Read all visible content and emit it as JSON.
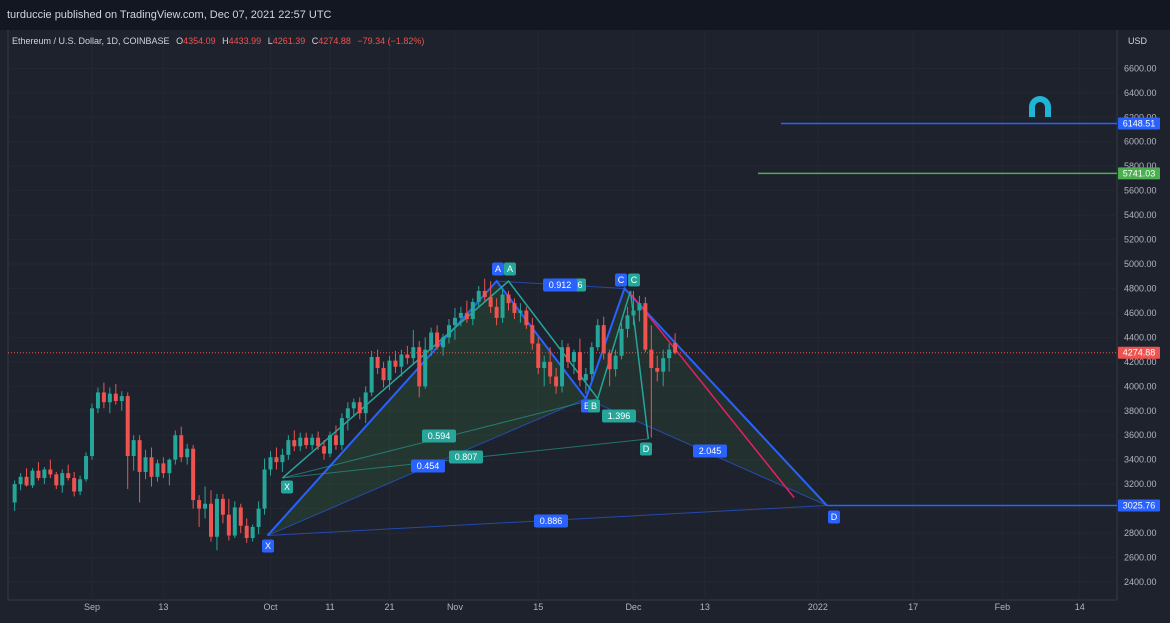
{
  "header": {
    "publisher": "turduccie published on TradingView.com, Dec 07, 2021 22:57 UTC"
  },
  "legend": {
    "symbol": "Ethereum / U.S. Dollar, 1D, COINBASE",
    "open_key": "O",
    "open": "4354.09",
    "high_key": "H",
    "high": "4433.99",
    "low_key": "L",
    "low": "4261.39",
    "close_key": "C",
    "close": "4274.88",
    "change": "−79.34 (−1.82%)"
  },
  "currency": "USD",
  "colors": {
    "up": "#26a69a",
    "down": "#ef5350",
    "pattern_blue": "#2962ff",
    "pattern_teal": "#26a69a",
    "target_green": "#4caf50"
  },
  "chart_data": {
    "type": "candlestick",
    "ylim": [
      2250,
      6850
    ],
    "y_ticks": [
      "2400.00",
      "2600.00",
      "2800.00",
      "3000.00",
      "3200.00",
      "3400.00",
      "3600.00",
      "3800.00",
      "4000.00",
      "4200.00",
      "4400.00",
      "4600.00",
      "4800.00",
      "5000.00",
      "5200.00",
      "5400.00",
      "5600.00",
      "5800.00",
      "6000.00",
      "6200.00",
      "6400.00",
      "6600.00"
    ],
    "x_ticks": [
      {
        "label": "Sep",
        "day": 0
      },
      {
        "label": "13",
        "day": 12
      },
      {
        "label": "Oct",
        "day": 30
      },
      {
        "label": "11",
        "day": 40
      },
      {
        "label": "21",
        "day": 50
      },
      {
        "label": "Nov",
        "day": 61
      },
      {
        "label": "15",
        "day": 75
      },
      {
        "label": "Dec",
        "day": 91
      },
      {
        "label": "13",
        "day": 103
      },
      {
        "label": "2022",
        "day": 122
      },
      {
        "label": "17",
        "day": 138
      },
      {
        "label": "Feb",
        "day": 153
      },
      {
        "label": "14",
        "day": 166
      }
    ],
    "price_labels": [
      {
        "value": 6148.51,
        "text": "6148.51",
        "color": "#2962ff"
      },
      {
        "value": 5741.03,
        "text": "5741.03",
        "color": "#4caf50"
      },
      {
        "value": 4274.88,
        "text": "4274.88",
        "color": "#ef5350"
      },
      {
        "value": 3025.76,
        "text": "3025.76",
        "color": "#2962ff"
      }
    ],
    "candles": [
      [
        -13,
        3050,
        3230,
        2980,
        3200
      ],
      [
        -12,
        3200,
        3290,
        3150,
        3260
      ],
      [
        -11,
        3260,
        3330,
        3180,
        3190
      ],
      [
        -10,
        3190,
        3330,
        3170,
        3310
      ],
      [
        -9,
        3310,
        3380,
        3230,
        3250
      ],
      [
        -8,
        3250,
        3340,
        3200,
        3320
      ],
      [
        -7,
        3320,
        3400,
        3250,
        3280
      ],
      [
        -6,
        3280,
        3300,
        3160,
        3190
      ],
      [
        -5,
        3190,
        3320,
        3130,
        3290
      ],
      [
        -4,
        3290,
        3360,
        3230,
        3250
      ],
      [
        -3,
        3250,
        3300,
        3100,
        3140
      ],
      [
        -2,
        3140,
        3270,
        3110,
        3240
      ],
      [
        -1,
        3240,
        3460,
        3220,
        3430
      ],
      [
        0,
        3430,
        3860,
        3400,
        3820
      ],
      [
        1,
        3820,
        3990,
        3780,
        3950
      ],
      [
        2,
        3950,
        4030,
        3820,
        3870
      ],
      [
        3,
        3870,
        3990,
        3780,
        3940
      ],
      [
        4,
        3940,
        4020,
        3850,
        3880
      ],
      [
        5,
        3880,
        3960,
        3800,
        3920
      ],
      [
        6,
        3920,
        3950,
        3160,
        3430
      ],
      [
        7,
        3430,
        3600,
        3310,
        3560
      ],
      [
        8,
        3560,
        3600,
        3050,
        3300
      ],
      [
        9,
        3300,
        3480,
        3240,
        3420
      ],
      [
        10,
        3420,
        3500,
        3180,
        3260
      ],
      [
        11,
        3260,
        3400,
        3220,
        3370
      ],
      [
        12,
        3370,
        3420,
        3250,
        3290
      ],
      [
        13,
        3290,
        3410,
        3190,
        3400
      ],
      [
        14,
        3400,
        3640,
        3360,
        3600
      ],
      [
        15,
        3600,
        3670,
        3380,
        3420
      ],
      [
        16,
        3420,
        3530,
        3360,
        3490
      ],
      [
        17,
        3490,
        3520,
        3000,
        3070
      ],
      [
        18,
        3070,
        3110,
        2850,
        3000
      ],
      [
        19,
        3000,
        3180,
        2920,
        3040
      ],
      [
        20,
        3040,
        3150,
        2730,
        2770
      ],
      [
        21,
        2770,
        3120,
        2660,
        3080
      ],
      [
        22,
        3080,
        3120,
        2880,
        2950
      ],
      [
        23,
        2950,
        3080,
        2740,
        2780
      ],
      [
        24,
        2780,
        3060,
        2760,
        3010
      ],
      [
        25,
        3010,
        3040,
        2800,
        2860
      ],
      [
        26,
        2860,
        2920,
        2720,
        2760
      ],
      [
        27,
        2760,
        2870,
        2730,
        2850
      ],
      [
        28,
        2850,
        3060,
        2790,
        3000
      ],
      [
        29,
        3000,
        3410,
        2950,
        3320
      ],
      [
        30,
        3320,
        3470,
        3270,
        3420
      ],
      [
        31,
        3420,
        3500,
        3320,
        3380
      ],
      [
        32,
        3380,
        3490,
        3300,
        3440
      ],
      [
        33,
        3440,
        3600,
        3400,
        3560
      ],
      [
        34,
        3560,
        3640,
        3470,
        3510
      ],
      [
        35,
        3510,
        3620,
        3470,
        3580
      ],
      [
        36,
        3580,
        3620,
        3490,
        3520
      ],
      [
        37,
        3520,
        3610,
        3480,
        3580
      ],
      [
        38,
        3580,
        3630,
        3480,
        3510
      ],
      [
        39,
        3510,
        3560,
        3400,
        3450
      ],
      [
        40,
        3450,
        3630,
        3420,
        3600
      ],
      [
        41,
        3600,
        3680,
        3480,
        3520
      ],
      [
        42,
        3520,
        3780,
        3480,
        3740
      ],
      [
        43,
        3740,
        3870,
        3640,
        3820
      ],
      [
        44,
        3820,
        3900,
        3750,
        3870
      ],
      [
        45,
        3870,
        3910,
        3730,
        3780
      ],
      [
        46,
        3780,
        4000,
        3700,
        3950
      ],
      [
        47,
        3950,
        4290,
        3920,
        4240
      ],
      [
        48,
        4240,
        4300,
        4100,
        4150
      ],
      [
        49,
        4150,
        4200,
        3990,
        4050
      ],
      [
        50,
        4050,
        4250,
        3970,
        4210
      ],
      [
        51,
        4210,
        4290,
        4110,
        4160
      ],
      [
        52,
        4160,
        4300,
        4080,
        4260
      ],
      [
        53,
        4260,
        4330,
        4180,
        4230
      ],
      [
        54,
        4230,
        4460,
        4180,
        4320
      ],
      [
        55,
        4320,
        4370,
        3910,
        4000
      ],
      [
        56,
        4000,
        4400,
        3980,
        4300
      ],
      [
        57,
        4300,
        4480,
        4250,
        4440
      ],
      [
        58,
        4440,
        4500,
        4300,
        4320
      ],
      [
        59,
        4320,
        4430,
        4250,
        4400
      ],
      [
        60,
        4400,
        4550,
        4350,
        4500
      ],
      [
        61,
        4500,
        4640,
        4380,
        4560
      ],
      [
        62,
        4560,
        4650,
        4490,
        4600
      ],
      [
        63,
        4600,
        4700,
        4520,
        4550
      ],
      [
        64,
        4550,
        4720,
        4500,
        4690
      ],
      [
        65,
        4690,
        4820,
        4640,
        4780
      ],
      [
        66,
        4780,
        4880,
        4700,
        4730
      ],
      [
        67,
        4730,
        4860,
        4600,
        4650
      ],
      [
        68,
        4650,
        4720,
        4500,
        4560
      ],
      [
        69,
        4560,
        4800,
        4520,
        4750
      ],
      [
        70,
        4750,
        4780,
        4620,
        4680
      ],
      [
        71,
        4680,
        4720,
        4550,
        4600
      ],
      [
        72,
        4600,
        4680,
        4520,
        4620
      ],
      [
        73,
        4620,
        4650,
        4470,
        4500
      ],
      [
        74,
        4500,
        4560,
        4300,
        4350
      ],
      [
        75,
        4350,
        4400,
        4100,
        4150
      ],
      [
        76,
        4150,
        4250,
        4000,
        4200
      ],
      [
        77,
        4200,
        4320,
        4020,
        4080
      ],
      [
        78,
        4080,
        4150,
        3940,
        4000
      ],
      [
        79,
        4000,
        4380,
        3950,
        4320
      ],
      [
        80,
        4320,
        4350,
        4150,
        4200
      ],
      [
        81,
        4200,
        4300,
        4100,
        4280
      ],
      [
        82,
        4280,
        4390,
        4000,
        4050
      ],
      [
        83,
        4050,
        4150,
        3940,
        4100
      ],
      [
        84,
        4100,
        4360,
        4050,
        4320
      ],
      [
        85,
        4320,
        4550,
        4290,
        4500
      ],
      [
        86,
        4500,
        4570,
        4220,
        4270
      ],
      [
        87,
        4270,
        4300,
        4000,
        4140
      ],
      [
        88,
        4140,
        4300,
        4080,
        4250
      ],
      [
        89,
        4250,
        4520,
        4220,
        4470
      ],
      [
        90,
        4470,
        4650,
        4400,
        4580
      ],
      [
        91,
        4580,
        4780,
        4500,
        4620
      ],
      [
        92,
        4620,
        4740,
        4530,
        4680
      ],
      [
        93,
        4680,
        4730,
        4280,
        4300
      ],
      [
        94,
        4300,
        4500,
        3580,
        4150
      ],
      [
        95,
        4150,
        4250,
        4040,
        4120
      ],
      [
        96,
        4120,
        4300,
        4000,
        4230
      ],
      [
        97,
        4230,
        4350,
        4120,
        4300
      ],
      [
        98,
        4354,
        4434,
        4261,
        4275
      ]
    ],
    "labels": {
      "a_left": "A",
      "a_right": "A",
      "c_left": "C",
      "c_right": "C",
      "x_small": "X",
      "x_large": "X",
      "b_small": "B",
      "b_large": "B",
      "d_small": "D",
      "d_large": "D",
      "r_0912": "0.912",
      "r_0913tail": "6",
      "r_0594": "0.594",
      "r_0454": "0.454",
      "r_0807": "0.807",
      "r_1396": "1.396",
      "r_2045": "2.045",
      "r_0886": "0.886"
    }
  }
}
